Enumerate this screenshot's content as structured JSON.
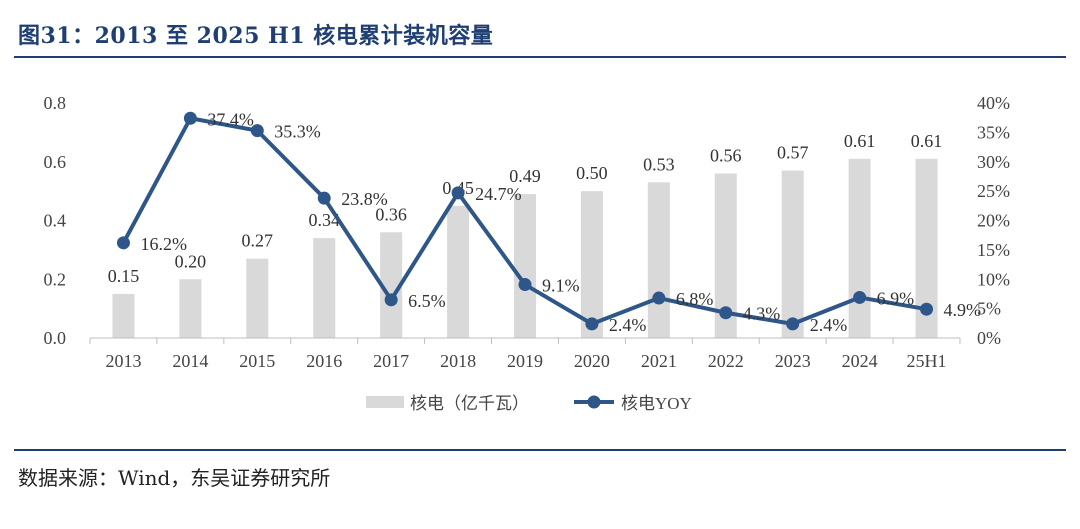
{
  "figure": {
    "title": "图31：2013 至 2025 H1 核电累计装机容量",
    "source": "数据来源：Wind，东吴证券研究所"
  },
  "chart_data": {
    "type": "bar",
    "categories": [
      "2013",
      "2014",
      "2015",
      "2016",
      "2017",
      "2018",
      "2019",
      "2020",
      "2021",
      "2022",
      "2023",
      "2024",
      "25H1"
    ],
    "series": [
      {
        "name": "核电（亿千瓦）",
        "type": "bar",
        "axis": "left",
        "values": [
          0.15,
          0.2,
          0.27,
          0.34,
          0.36,
          0.45,
          0.49,
          0.5,
          0.53,
          0.56,
          0.57,
          0.61,
          0.61
        ],
        "labels": [
          "0.15",
          "0.20",
          "0.27",
          "0.34",
          "0.36",
          "0.45",
          "0.49",
          "0.50",
          "0.53",
          "0.56",
          "0.57",
          "0.61",
          "0.61"
        ]
      },
      {
        "name": "核电YOY",
        "type": "line",
        "axis": "right",
        "values": [
          16.2,
          37.4,
          35.3,
          23.8,
          6.5,
          24.7,
          9.1,
          2.4,
          6.8,
          4.3,
          2.4,
          6.9,
          4.9
        ],
        "labels": [
          "16.2%",
          "37.4%",
          "35.3%",
          "23.8%",
          "6.5%",
          "24.7%",
          "9.1%",
          "2.4%",
          "6.8%",
          "4.3%",
          "2.4%",
          "6.9%",
          "4.9%"
        ]
      }
    ],
    "left_axis": {
      "min": 0,
      "max": 0.8,
      "ticks": [
        "0.0",
        "0.2",
        "0.4",
        "0.6",
        "0.8"
      ]
    },
    "right_axis": {
      "min": 0,
      "max": 40,
      "ticks": [
        "0%",
        "5%",
        "10%",
        "15%",
        "20%",
        "25%",
        "30%",
        "35%",
        "40%"
      ]
    },
    "grid": false,
    "legend": "bottom",
    "colors": {
      "bar": "#d9d9d9",
      "line": "#2e5688",
      "title": "#1f3f73"
    }
  }
}
